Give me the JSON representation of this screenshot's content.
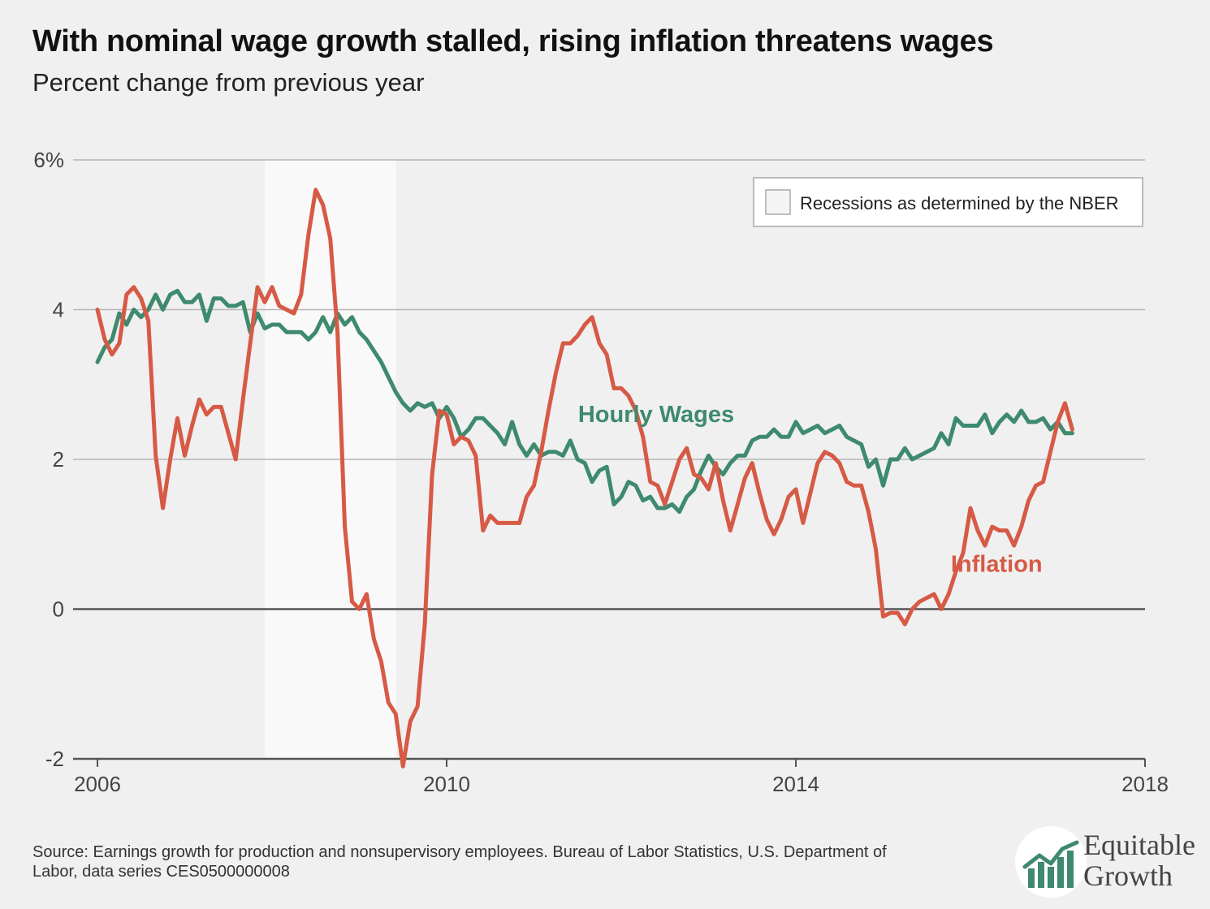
{
  "title": "With nominal wage growth stalled, rising inflation threatens wages",
  "subtitle": "Percent change from previous year",
  "source": "Source: Earnings growth for production and nonsupervisory employees. Bureau of Labor Statistics, U.S. Department of Labor, data series CES0500000008",
  "brand": {
    "line1": "Equitable",
    "line2": "Growth"
  },
  "legend": {
    "label": "Recessions as determined by the NBER"
  },
  "colors": {
    "wages": "#3e8a6e",
    "inflation": "#d65a45",
    "recession": "#f9f9f9",
    "grid": "#b5b5b5",
    "zero": "#555555",
    "label": "#444444"
  },
  "chart_data": {
    "type": "line",
    "xlim": [
      2006,
      2018
    ],
    "ylim": [
      -2,
      6
    ],
    "x_ticks": [
      2006,
      2010,
      2014,
      2018
    ],
    "x_tick_labels": [
      "2006",
      "2010",
      "2014",
      "2018"
    ],
    "y_ticks": [
      -2,
      0,
      2,
      4,
      6
    ],
    "y_tick_labels": [
      "-2",
      "0",
      "2",
      "4",
      "6%"
    ],
    "recession": [
      2007.92,
      2009.42
    ],
    "series": [
      {
        "name": "Hourly Wages",
        "start": 2006.0,
        "step": 0.08333,
        "values": [
          3.3,
          3.5,
          3.6,
          3.95,
          3.8,
          4.0,
          3.9,
          4.0,
          4.2,
          4.0,
          4.2,
          4.25,
          4.1,
          4.1,
          4.2,
          3.85,
          4.15,
          4.15,
          4.05,
          4.05,
          4.1,
          3.7,
          3.95,
          3.75,
          3.8,
          3.8,
          3.7,
          3.7,
          3.7,
          3.6,
          3.7,
          3.9,
          3.7,
          3.95,
          3.8,
          3.9,
          3.7,
          3.6,
          3.45,
          3.3,
          3.1,
          2.9,
          2.75,
          2.65,
          2.75,
          2.7,
          2.75,
          2.55,
          2.7,
          2.55,
          2.3,
          2.4,
          2.55,
          2.55,
          2.45,
          2.35,
          2.2,
          2.5,
          2.2,
          2.05,
          2.2,
          2.05,
          2.1,
          2.1,
          2.05,
          2.25,
          2.0,
          1.95,
          1.7,
          1.85,
          1.9,
          1.4,
          1.5,
          1.7,
          1.65,
          1.45,
          1.5,
          1.35,
          1.35,
          1.4,
          1.3,
          1.5,
          1.6,
          1.85,
          2.05,
          1.9,
          1.8,
          1.95,
          2.05,
          2.05,
          2.25,
          2.3,
          2.3,
          2.4,
          2.3,
          2.3,
          2.5,
          2.35,
          2.4,
          2.45,
          2.35,
          2.4,
          2.45,
          2.3,
          2.25,
          2.2,
          1.9,
          2.0,
          1.65,
          2.0,
          2.0,
          2.15,
          2.0,
          2.05,
          2.1,
          2.15,
          2.35,
          2.2,
          2.55,
          2.45,
          2.45,
          2.45,
          2.6,
          2.35,
          2.5,
          2.6,
          2.5,
          2.65,
          2.5,
          2.5,
          2.55,
          2.4,
          2.5,
          2.35,
          2.35
        ]
      },
      {
        "name": "Inflation",
        "start": 2006.0,
        "step": 0.08333,
        "values": [
          4.0,
          3.6,
          3.4,
          3.55,
          4.2,
          4.3,
          4.15,
          3.85,
          2.05,
          1.35,
          2.0,
          2.55,
          2.05,
          2.45,
          2.8,
          2.6,
          2.7,
          2.7,
          2.35,
          2.0,
          2.8,
          3.55,
          4.3,
          4.1,
          4.3,
          4.05,
          4.0,
          3.95,
          4.2,
          5.0,
          5.6,
          5.4,
          4.95,
          3.7,
          1.1,
          0.1,
          0.0,
          0.2,
          -0.4,
          -0.7,
          -1.25,
          -1.4,
          -2.1,
          -1.5,
          -1.3,
          -0.2,
          1.8,
          2.65,
          2.6,
          2.2,
          2.3,
          2.25,
          2.05,
          1.05,
          1.25,
          1.15,
          1.15,
          1.15,
          1.15,
          1.5,
          1.65,
          2.1,
          2.65,
          3.15,
          3.55,
          3.55,
          3.65,
          3.8,
          3.9,
          3.55,
          3.4,
          2.95,
          2.95,
          2.85,
          2.65,
          2.3,
          1.7,
          1.65,
          1.4,
          1.7,
          2.0,
          2.15,
          1.8,
          1.75,
          1.6,
          1.95,
          1.45,
          1.05,
          1.4,
          1.75,
          1.95,
          1.55,
          1.2,
          1.0,
          1.2,
          1.5,
          1.6,
          1.15,
          1.55,
          1.95,
          2.1,
          2.05,
          1.95,
          1.7,
          1.65,
          1.65,
          1.3,
          0.8,
          -0.1,
          -0.05,
          -0.05,
          -0.2,
          0.0,
          0.1,
          0.15,
          0.2,
          0.0,
          0.2,
          0.5,
          0.75,
          1.35,
          1.05,
          0.85,
          1.1,
          1.05,
          1.05,
          0.85,
          1.1,
          1.45,
          1.65,
          1.7,
          2.1,
          2.5,
          2.75,
          2.4
        ]
      }
    ],
    "annotations": [
      {
        "text": "Hourly Wages",
        "x": 2012.4,
        "y": 2.5
      },
      {
        "text": "Inflation",
        "x": 2016.3,
        "y": 0.5
      }
    ]
  }
}
